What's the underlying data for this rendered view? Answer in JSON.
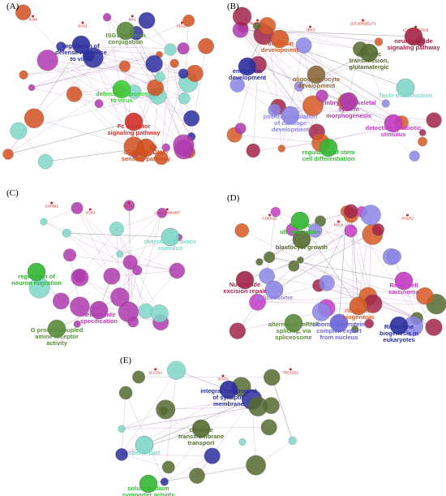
{
  "panels": [
    {
      "label": "(A)",
      "terms": [
        {
          "text": "regulation of defense response to virus",
          "color": "#2b2f9e"
        },
        {
          "text": "ISG15-protein conjugation",
          "color": "#5a8a3a"
        },
        {
          "text": "defense response to virus",
          "color": "#3ccf3c"
        },
        {
          "text": "Fc receptor signaling pathway",
          "color": "#d2302a"
        },
        {
          "text": "Cytosolic DNA-sensing pathway",
          "color": "#d2501f"
        }
      ],
      "genes": [
        "IFI44",
        "OAS1",
        "MX1",
        "ISG15"
      ]
    },
    {
      "label": "(B)",
      "terms": [
        {
          "text": "hindbrain development",
          "color": "#d65a24"
        },
        {
          "text": "neuropeptide signaling pathway",
          "color": "#a3244a"
        },
        {
          "text": "synaptic transmission, glutamatergic",
          "color": "#556b2f"
        },
        {
          "text": "endoderm development",
          "color": "#2b2f9e"
        },
        {
          "text": "oligodendrocyte development",
          "color": "#8a6a3a"
        },
        {
          "text": "Taste transduction",
          "color": "#7fd8c8"
        },
        {
          "text": "embryonic skeletal system morphogenesis",
          "color": "#b03ab0"
        },
        {
          "text": "positive regulation of cartilage development",
          "color": "#8c86e6"
        },
        {
          "text": "detection of abiotic stimulus",
          "color": "#c43ac4"
        },
        {
          "text": "regulation of stem cell differentiation",
          "color": "#33b833"
        }
      ],
      "genes": [
        "PHOX2A",
        "TBX3",
        "LOC100505171",
        "LOC100652029"
      ]
    },
    {
      "label": "(C)",
      "terms": [
        {
          "text": "detection of biotic stimulus",
          "color": "#7fd8c8"
        },
        {
          "text": "regulation of neuron migration",
          "color": "#33b833"
        },
        {
          "text": "neuron fate specification",
          "color": "#b03ab0"
        },
        {
          "text": "G protein-coupled amine receptor activity",
          "color": "#5a8a3a"
        }
      ],
      "genes": [
        "CHRM1",
        "SOX3",
        "GATA2",
        "LOC100499467"
      ]
    },
    {
      "label": "(D)",
      "terms": [
        {
          "text": "histone ubiquitination",
          "color": "#33b833"
        },
        {
          "text": "blastocyst growth",
          "color": "#556b2f"
        },
        {
          "text": "Nucleotide excision repair",
          "color": "#a3244a"
        },
        {
          "text": "Spliceosome",
          "color": "#8c86e6"
        },
        {
          "text": "Renal cell carcinoma",
          "color": "#c43ac4"
        },
        {
          "text": "ribosome biogenesis",
          "color": "#d65a24"
        },
        {
          "text": "Ribosome biogenesis in eukaryotes",
          "color": "#2b2f9e"
        },
        {
          "text": "alternative mRNA splicing, via spliceosome",
          "color": "#5a8a3a"
        },
        {
          "text": "ribonucleoprotein complex export from nucleus",
          "color": "#6a64d8"
        }
      ],
      "genes": [
        "CDKN1C",
        "NOL6",
        "POLR2"
      ]
    },
    {
      "label": "(E)",
      "terms": [
        {
          "text": "integral component of synaptic membrane",
          "color": "#2b2f9e"
        },
        {
          "text": "chloride transmembrane transport",
          "color": "#556b2f"
        },
        {
          "text": "sperm part",
          "color": "#7fd8c8"
        },
        {
          "text": "solute:sodium symporter activity",
          "color": "#33b833"
        }
      ],
      "genes": [
        "SLC26A",
        "SPATA",
        "TBC1D21"
      ]
    }
  ]
}
